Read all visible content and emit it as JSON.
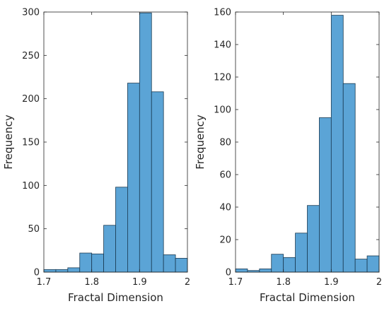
{
  "chart_data": [
    {
      "type": "bar",
      "xlabel": "Fractal Dimension",
      "ylabel": "Frequency",
      "xlim": [
        1.7,
        2.0
      ],
      "ylim": [
        0,
        300
      ],
      "x_ticks": [
        "1.7",
        "1.8",
        "1.9",
        "2"
      ],
      "y_ticks": [
        "0",
        "50",
        "100",
        "150",
        "200",
        "250",
        "300"
      ],
      "bin_edges": [
        1.7,
        1.725,
        1.75,
        1.775,
        1.8,
        1.825,
        1.85,
        1.875,
        1.9,
        1.925,
        1.95,
        1.975,
        2.0
      ],
      "values": [
        3,
        3,
        5,
        22,
        21,
        54,
        98,
        218,
        299,
        208,
        20,
        16
      ],
      "bar_color": "#5ba4d6",
      "edge_color": "#1a3a52",
      "grid": false
    },
    {
      "type": "bar",
      "xlabel": "Fractal Dimension",
      "ylabel": "Frequency",
      "xlim": [
        1.7,
        2.0
      ],
      "ylim": [
        0,
        160
      ],
      "x_ticks": [
        "1.7",
        "1.8",
        "1.9",
        "2"
      ],
      "y_ticks": [
        "0",
        "20",
        "40",
        "60",
        "80",
        "100",
        "120",
        "140",
        "160"
      ],
      "bin_edges": [
        1.7,
        1.725,
        1.75,
        1.775,
        1.8,
        1.825,
        1.85,
        1.875,
        1.9,
        1.925,
        1.95,
        1.975,
        2.0
      ],
      "values": [
        2,
        1,
        2,
        11,
        9,
        24,
        41,
        95,
        158,
        116,
        8,
        10
      ],
      "bar_color": "#5ba4d6",
      "edge_color": "#1a3a52",
      "grid": false
    }
  ]
}
